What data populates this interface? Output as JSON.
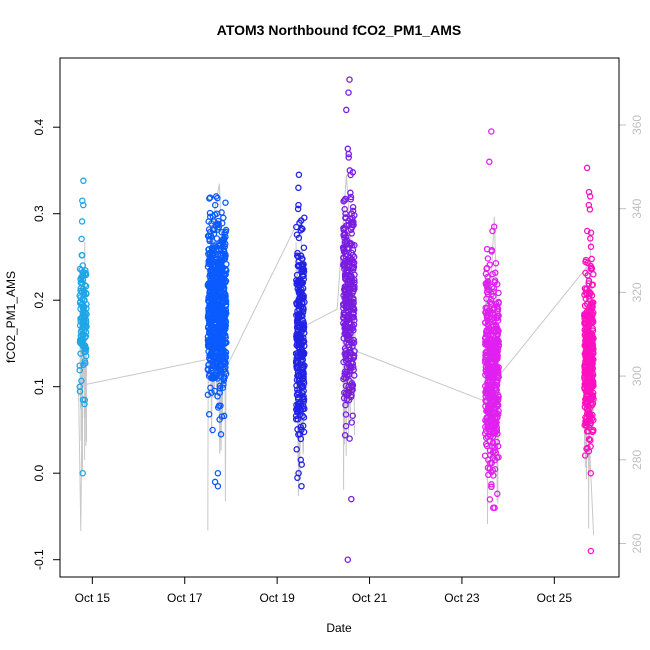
{
  "chart_data": {
    "type": "scatter",
    "title": "ATOM3 Northbound fCO2_PM1_AMS",
    "xlabel": "Date",
    "ylabel": "fCO2_PM1_AMS",
    "ylabel_right": "",
    "x_ticks": [
      "Oct 15",
      "Oct 17",
      "Oct 19",
      "Oct 21",
      "Oct 23",
      "Oct 25"
    ],
    "x_tick_days": [
      15,
      17,
      19,
      21,
      23,
      25
    ],
    "xlim": [
      14.3,
      26.4
    ],
    "ylim": [
      -0.12,
      0.48
    ],
    "y_ticks": [
      -0.1,
      0.0,
      0.1,
      0.2,
      0.3,
      0.4
    ],
    "y_tick_labels": [
      "-0.1",
      "0.0",
      "0.1",
      "0.2",
      "0.3",
      "0.4"
    ],
    "ylim_right": [
      252,
      376
    ],
    "y2_ticks": [
      260,
      280,
      300,
      320,
      340,
      360
    ],
    "y2_tick_labels": [
      "260",
      "280",
      "300",
      "320",
      "340",
      "360"
    ],
    "series_right": {
      "color": "#c8c8c8",
      "description": "grey altitude/secondary trace",
      "points": [
        [
          14.7,
          298
        ],
        [
          14.75,
          263
        ],
        [
          14.8,
          320
        ],
        [
          14.85,
          298
        ],
        [
          17.5,
          304
        ],
        [
          17.65,
          340
        ],
        [
          17.75,
          346
        ],
        [
          17.9,
          302
        ],
        [
          19.5,
          338
        ],
        [
          19.6,
          312
        ],
        [
          20.3,
          316
        ],
        [
          20.5,
          348
        ],
        [
          20.6,
          332
        ],
        [
          20.7,
          306
        ],
        [
          23.5,
          294
        ],
        [
          23.7,
          338
        ],
        [
          23.8,
          300
        ],
        [
          25.7,
          326
        ],
        [
          25.75,
          286
        ],
        [
          25.85,
          262
        ]
      ]
    },
    "flights": [
      {
        "day": 14.8,
        "width": 0.15,
        "color": "#1ea6e6",
        "center": 0.185,
        "spread": 0.04,
        "n": 120,
        "outliers": [
          0.338,
          0.315,
          0.31,
          0.0,
          0.08,
          0.085
        ]
      },
      {
        "day": 17.7,
        "width": 0.4,
        "color": "#0a5bff",
        "center": 0.19,
        "spread": 0.05,
        "n": 700,
        "outliers": [
          0.32,
          0.31,
          0.3,
          0.045,
          0.05,
          0.0,
          -0.01,
          -0.015
        ]
      },
      {
        "day": 19.5,
        "width": 0.18,
        "color": "#2222e6",
        "center": 0.16,
        "spread": 0.06,
        "n": 260,
        "outliers": [
          0.345,
          0.33,
          0.31,
          -0.015,
          0.0,
          0.01
        ]
      },
      {
        "day": 20.55,
        "width": 0.25,
        "color": "#7a1de0",
        "center": 0.2,
        "spread": 0.06,
        "n": 320,
        "outliers": [
          0.455,
          0.44,
          0.42,
          0.375,
          0.365,
          0.35,
          0.04,
          -0.03,
          -0.1
        ]
      },
      {
        "day": 23.65,
        "width": 0.3,
        "color": "#e020f0",
        "center": 0.12,
        "spread": 0.06,
        "n": 450,
        "outliers": [
          0.395,
          0.36,
          0.285,
          0.28,
          -0.04,
          -0.04
        ]
      },
      {
        "day": 25.75,
        "width": 0.2,
        "color": "#ff10c0",
        "center": 0.135,
        "spread": 0.05,
        "n": 380,
        "outliers": [
          0.353,
          0.325,
          0.32,
          0.31,
          0.305,
          0.28,
          0.0,
          -0.09
        ]
      }
    ],
    "marker": "open-circle",
    "grid": false,
    "legend": "none"
  }
}
